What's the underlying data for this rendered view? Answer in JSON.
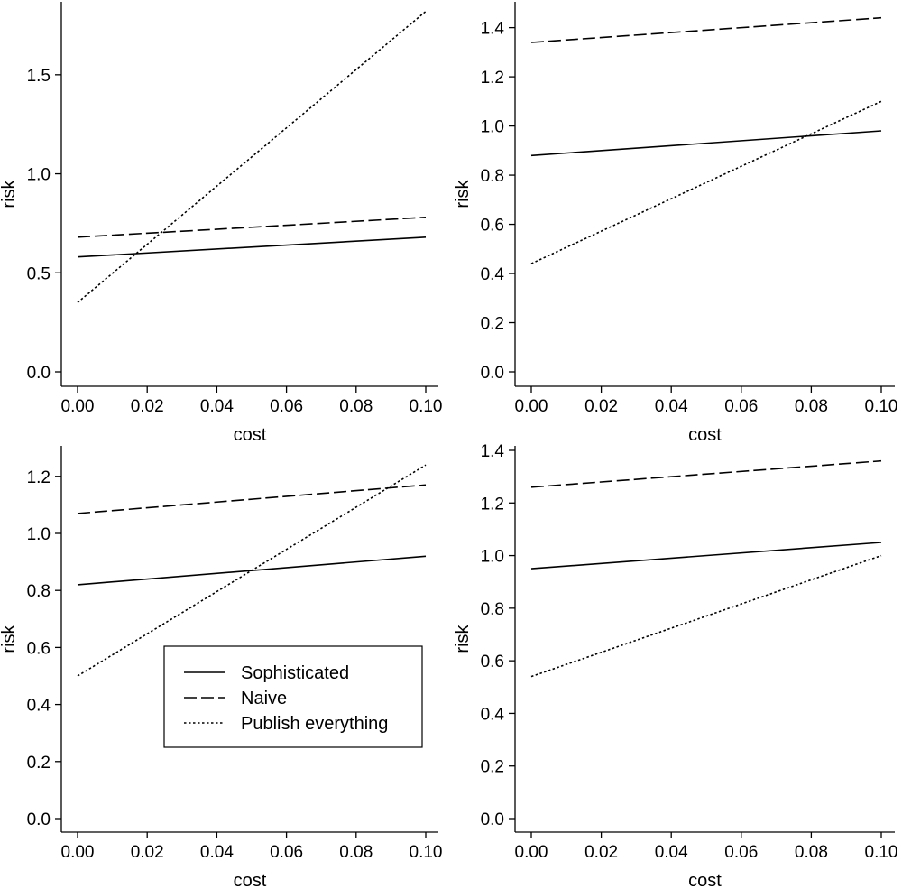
{
  "figure": {
    "line_color": "#000000",
    "background": "#ffffff"
  },
  "chart_data": [
    {
      "type": "line",
      "title": "",
      "xlabel": "cost",
      "ylabel": "risk",
      "xlim": [
        0,
        0.1
      ],
      "ylim": [
        0,
        1.8
      ],
      "xticks": [
        "0.00",
        "0.02",
        "0.04",
        "0.06",
        "0.08",
        "0.10"
      ],
      "yticks": [
        "0.0",
        "0.5",
        "1.0",
        "1.5"
      ],
      "grid": false,
      "series": [
        {
          "style": "solid",
          "x": [
            0,
            0.1
          ],
          "y": [
            0.58,
            0.68
          ]
        },
        {
          "style": "dashed",
          "x": [
            0,
            0.1
          ],
          "y": [
            0.68,
            0.78
          ]
        },
        {
          "style": "dotted",
          "x": [
            0,
            0.1
          ],
          "y": [
            0.35,
            1.82
          ]
        }
      ]
    },
    {
      "type": "line",
      "title": "",
      "xlabel": "cost",
      "ylabel": "risk",
      "xlim": [
        0,
        0.1
      ],
      "ylim": [
        0,
        1.45
      ],
      "xticks": [
        "0.00",
        "0.02",
        "0.04",
        "0.06",
        "0.08",
        "0.10"
      ],
      "yticks": [
        "0.0",
        "0.2",
        "0.4",
        "0.6",
        "0.8",
        "1.0",
        "1.2",
        "1.4"
      ],
      "grid": false,
      "series": [
        {
          "style": "solid",
          "x": [
            0,
            0.1
          ],
          "y": [
            0.88,
            0.98
          ]
        },
        {
          "style": "dashed",
          "x": [
            0,
            0.1
          ],
          "y": [
            1.34,
            1.44
          ]
        },
        {
          "style": "dotted",
          "x": [
            0,
            0.1
          ],
          "y": [
            0.44,
            1.1
          ]
        }
      ]
    },
    {
      "type": "line",
      "title": "",
      "xlabel": "cost",
      "ylabel": "risk",
      "xlim": [
        0,
        0.1
      ],
      "ylim": [
        0,
        1.25
      ],
      "xticks": [
        "0.00",
        "0.02",
        "0.04",
        "0.06",
        "0.08",
        "0.10"
      ],
      "yticks": [
        "0.0",
        "0.2",
        "0.4",
        "0.6",
        "0.8",
        "1.0",
        "1.2"
      ],
      "grid": false,
      "legend": {
        "position": "lower-center",
        "entries": [
          {
            "label": "Sophisticated",
            "style": "solid"
          },
          {
            "label": "Naive",
            "style": "dashed"
          },
          {
            "label": "Publish everything",
            "style": "dotted"
          }
        ]
      },
      "series": [
        {
          "name": "Sophisticated",
          "style": "solid",
          "x": [
            0,
            0.1
          ],
          "y": [
            0.82,
            0.92
          ]
        },
        {
          "name": "Naive",
          "style": "dashed",
          "x": [
            0,
            0.1
          ],
          "y": [
            1.07,
            1.17
          ]
        },
        {
          "name": "Publish everything",
          "style": "dotted",
          "x": [
            0,
            0.1
          ],
          "y": [
            0.5,
            1.24
          ]
        }
      ]
    },
    {
      "type": "line",
      "title": "",
      "xlabel": "cost",
      "ylabel": "risk",
      "xlim": [
        0,
        0.1
      ],
      "ylim": [
        0,
        1.4
      ],
      "xticks": [
        "0.00",
        "0.02",
        "0.04",
        "0.06",
        "0.08",
        "0.10"
      ],
      "yticks": [
        "0.0",
        "0.2",
        "0.4",
        "0.6",
        "0.8",
        "1.0",
        "1.2",
        "1.4"
      ],
      "grid": false,
      "series": [
        {
          "style": "solid",
          "x": [
            0,
            0.1
          ],
          "y": [
            0.95,
            1.05
          ]
        },
        {
          "style": "dashed",
          "x": [
            0,
            0.1
          ],
          "y": [
            1.26,
            1.36
          ]
        },
        {
          "style": "dotted",
          "x": [
            0,
            0.1
          ],
          "y": [
            0.54,
            1.0
          ]
        }
      ]
    }
  ]
}
